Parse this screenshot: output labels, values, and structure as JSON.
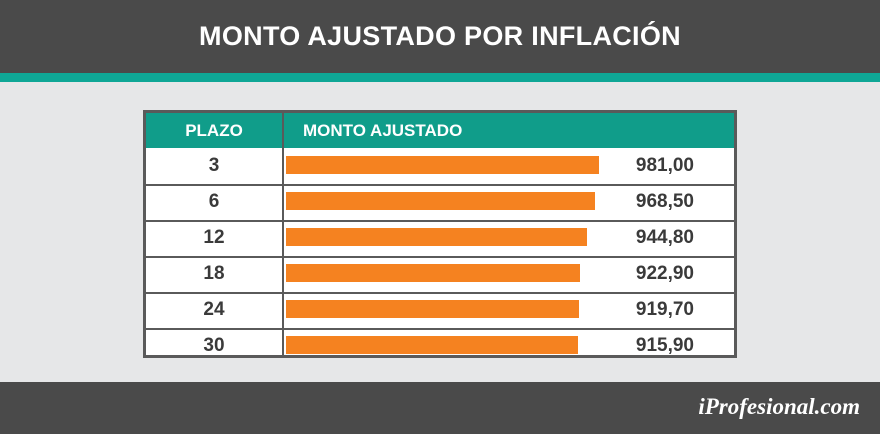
{
  "title": "MONTO AJUSTADO POR INFLACIÓN",
  "brand": "iProfesional.com",
  "colors": {
    "header_bg": "#4a4a4a",
    "accent": "#0fa796",
    "table_header": "#109d8a",
    "bar": "#f58220"
  },
  "chart_data": {
    "type": "bar",
    "orientation": "horizontal",
    "title": "MONTO AJUSTADO POR INFLACIÓN",
    "column_headers": [
      "PLAZO",
      "MONTO AJUSTADO"
    ],
    "categories": [
      "3",
      "6",
      "12",
      "18",
      "24",
      "30"
    ],
    "values": [
      981.0,
      968.5,
      944.8,
      922.9,
      919.7,
      915.9
    ],
    "value_labels": [
      "981,00",
      "968,50",
      "944,80",
      "922,90",
      "919,70",
      "915,90"
    ],
    "bar_scale_max": 981.0
  }
}
